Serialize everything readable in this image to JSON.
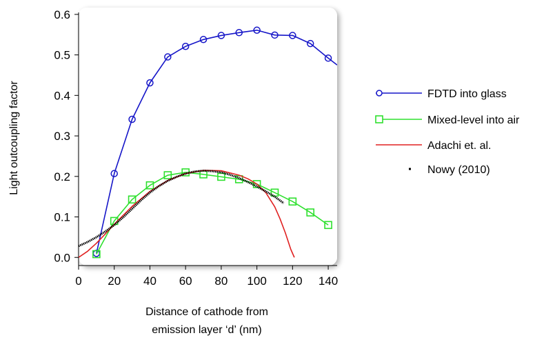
{
  "chart_data": {
    "type": "line",
    "xlabel": [
      "Distance of cathode from",
      "emission layer ‘d’ (nm)"
    ],
    "ylabel": "Light outcoupling factor",
    "xlim": [
      0,
      145
    ],
    "ylim": [
      -0.02,
      0.61
    ],
    "x_ticks": [
      "0",
      "20",
      "40",
      "60",
      "80",
      "100",
      "120",
      "140"
    ],
    "x_tick_values": [
      0,
      20,
      40,
      60,
      80,
      100,
      120,
      140
    ],
    "y_ticks": [
      "0.0",
      "0.1",
      "0.2",
      "0.3",
      "0.4",
      "0.5",
      "0.6"
    ],
    "y_tick_values": [
      0.0,
      0.1,
      0.2,
      0.3,
      0.4,
      0.5,
      0.6
    ],
    "grid": false,
    "legend_position": "right",
    "series": [
      {
        "name": "FDTD into glass",
        "color": "#1515c8",
        "marker": "circle",
        "x": [
          10,
          20,
          30,
          40,
          50,
          60,
          70,
          80,
          90,
          100,
          110,
          120,
          130,
          140,
          145
        ],
        "y": [
          0.01,
          0.207,
          0.341,
          0.431,
          0.495,
          0.521,
          0.538,
          0.548,
          0.555,
          0.561,
          0.549,
          0.548,
          0.528,
          0.492,
          0.475
        ]
      },
      {
        "name": "Mixed-level into air",
        "color": "#2ee02e",
        "marker": "square",
        "x": [
          10,
          20,
          30,
          40,
          50,
          60,
          70,
          80,
          90,
          100,
          110,
          120,
          130,
          140
        ],
        "y": [
          0.008,
          0.09,
          0.143,
          0.178,
          0.203,
          0.21,
          0.205,
          0.199,
          0.193,
          0.181,
          0.16,
          0.138,
          0.111,
          0.08
        ]
      },
      {
        "name": "Adachi et. al.",
        "color": "#e02020",
        "marker": "none",
        "x": [
          0,
          5,
          10,
          15,
          20,
          30,
          40,
          50,
          60,
          70,
          80,
          90,
          95,
          100,
          105,
          110,
          113,
          116,
          119,
          121
        ],
        "y": [
          0.0,
          0.015,
          0.035,
          0.058,
          0.082,
          0.126,
          0.163,
          0.19,
          0.207,
          0.215,
          0.214,
          0.203,
          0.194,
          0.181,
          0.16,
          0.125,
          0.095,
          0.06,
          0.02,
          0.0
        ]
      },
      {
        "name": "Nowy (2010)",
        "color": "#000000",
        "marker": "dot",
        "x": [
          0,
          5,
          10,
          15,
          20,
          25,
          30,
          35,
          40,
          45,
          50,
          55,
          60,
          65,
          70,
          75,
          80,
          85,
          90,
          95,
          100,
          105,
          110,
          115
        ],
        "y": [
          0.028,
          0.038,
          0.05,
          0.064,
          0.08,
          0.099,
          0.12,
          0.141,
          0.16,
          0.176,
          0.189,
          0.199,
          0.207,
          0.212,
          0.214,
          0.213,
          0.21,
          0.204,
          0.196,
          0.186,
          0.175,
          0.163,
          0.15,
          0.134
        ]
      }
    ]
  }
}
